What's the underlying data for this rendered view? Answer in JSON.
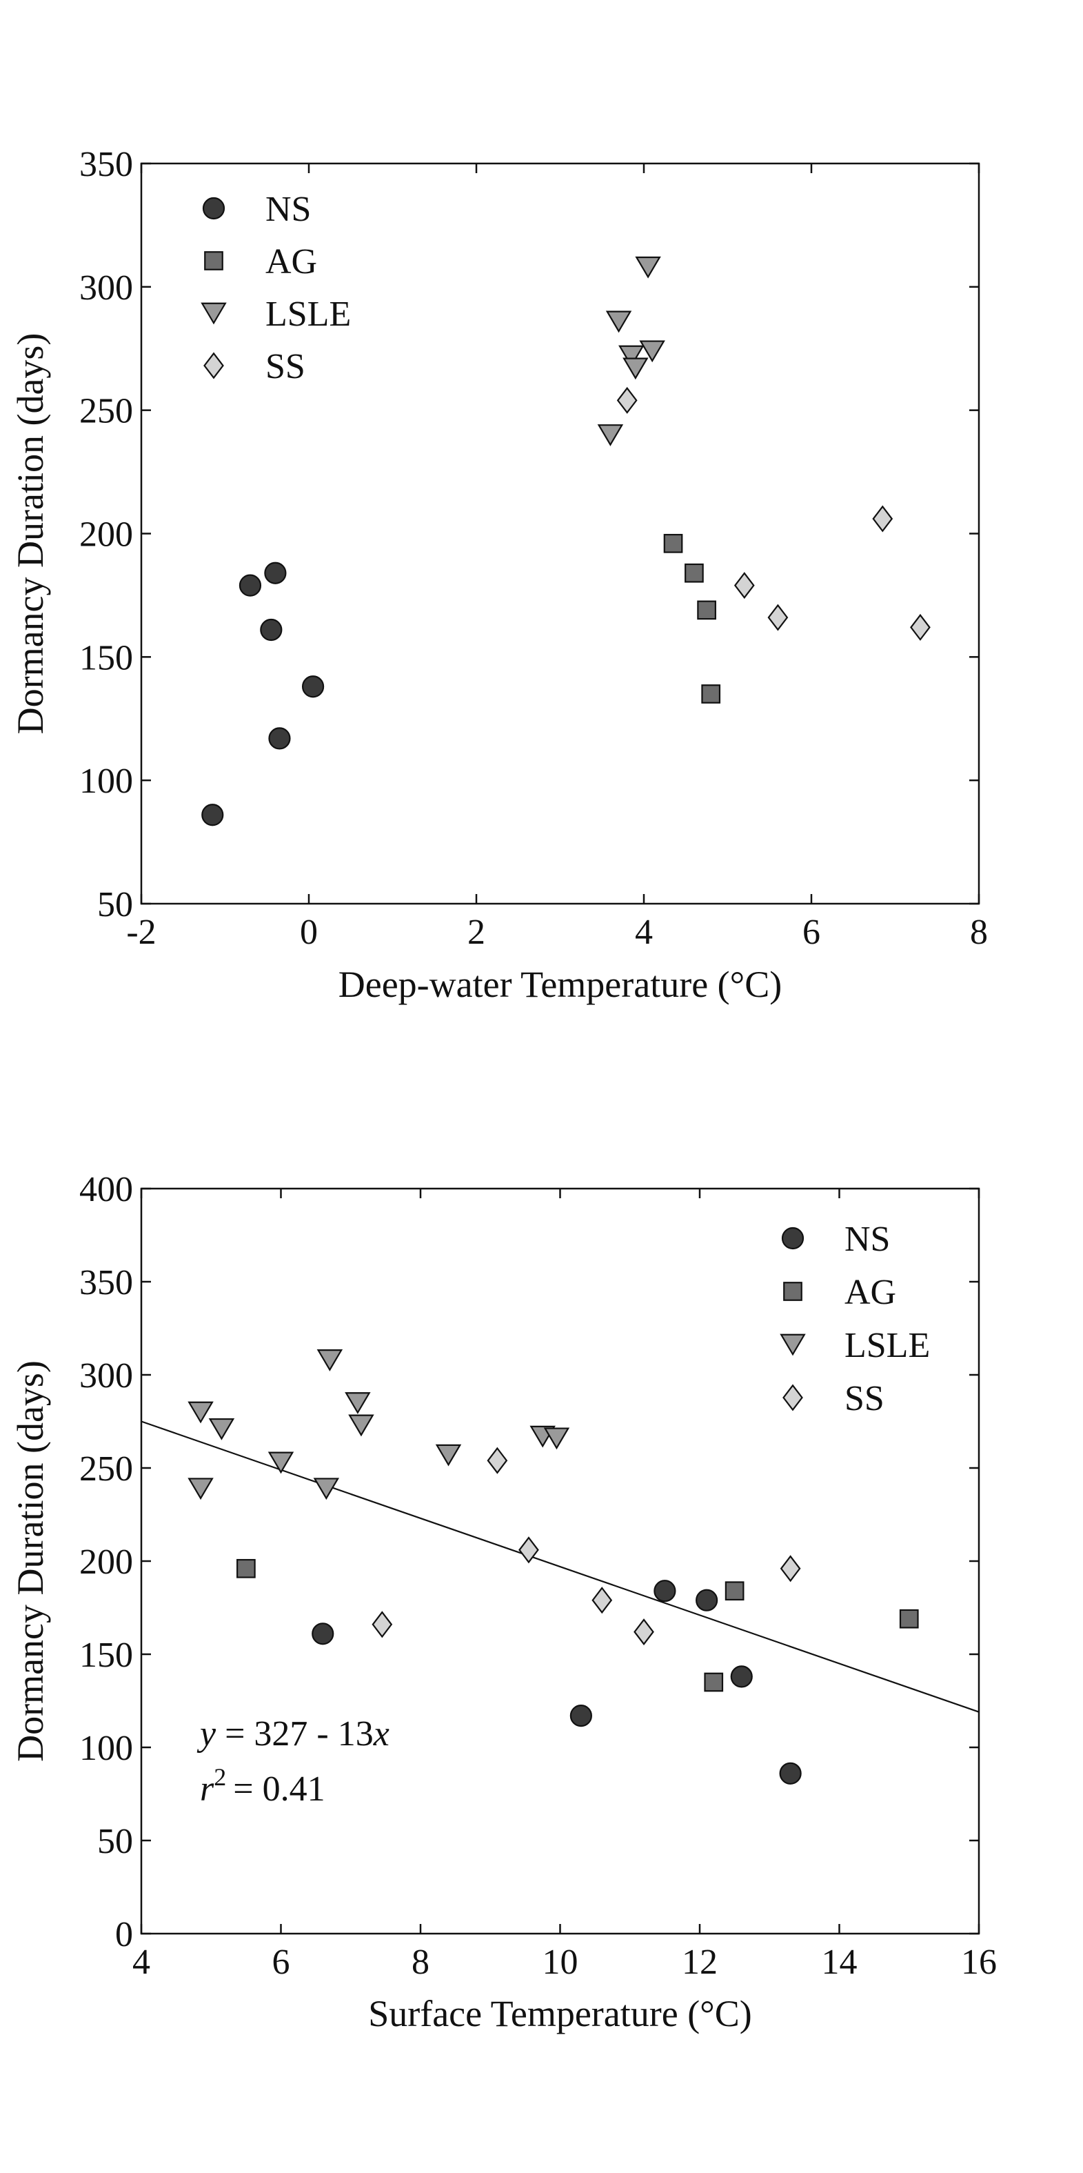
{
  "chart_data": [
    {
      "type": "scatter",
      "xlabel": "Deep-water Temperature (°C)",
      "ylabel": "Dormancy Duration (days)",
      "xlim": [
        -2,
        8
      ],
      "ylim": [
        50,
        350
      ],
      "xticks": [
        -2,
        0,
        2,
        4,
        6,
        8
      ],
      "yticks": [
        50,
        100,
        150,
        200,
        250,
        300,
        350
      ],
      "grid": false,
      "legend_position": "top-left",
      "series": [
        {
          "name": "NS",
          "marker": "circle",
          "color": "#3a3a3a",
          "points": [
            [
              -1.15,
              86
            ],
            [
              -0.7,
              179
            ],
            [
              -0.45,
              161
            ],
            [
              -0.4,
              184
            ],
            [
              -0.35,
              117
            ],
            [
              0.05,
              138
            ]
          ]
        },
        {
          "name": "AG",
          "marker": "square",
          "color": "#6d6d6d",
          "points": [
            [
              4.35,
              196
            ],
            [
              4.6,
              184
            ],
            [
              4.75,
              169
            ],
            [
              4.8,
              135
            ]
          ]
        },
        {
          "name": "LSLE",
          "marker": "triangle-down",
          "color": "#9a9a9a",
          "points": [
            [
              3.6,
              240
            ],
            [
              3.7,
              286
            ],
            [
              3.85,
              272
            ],
            [
              3.9,
              267
            ],
            [
              4.05,
              308
            ],
            [
              4.1,
              274
            ]
          ]
        },
        {
          "name": "SS",
          "marker": "diamond",
          "color": "#d4d4d4",
          "points": [
            [
              3.8,
              254
            ],
            [
              5.2,
              179
            ],
            [
              5.6,
              166
            ],
            [
              6.85,
              206
            ],
            [
              7.3,
              162
            ]
          ]
        }
      ]
    },
    {
      "type": "scatter",
      "xlabel": "Surface Temperature (°C)",
      "ylabel": "Dormancy Duration (days)",
      "xlim": [
        4,
        16
      ],
      "ylim": [
        0,
        400
      ],
      "xticks": [
        4,
        6,
        8,
        10,
        12,
        14,
        16
      ],
      "yticks": [
        0,
        50,
        100,
        150,
        200,
        250,
        300,
        350,
        400
      ],
      "grid": false,
      "legend_position": "top-right",
      "fit": {
        "intercept": 327,
        "slope": -13,
        "equation_prefix": "y = 327 - 13x",
        "r2_text": "= 0.41"
      },
      "series": [
        {
          "name": "NS",
          "marker": "circle",
          "color": "#3a3a3a",
          "points": [
            [
              6.6,
              161
            ],
            [
              10.3,
              117
            ],
            [
              11.5,
              184
            ],
            [
              12.1,
              179
            ],
            [
              12.6,
              138
            ],
            [
              13.3,
              86
            ]
          ]
        },
        {
          "name": "AG",
          "marker": "square",
          "color": "#6d6d6d",
          "points": [
            [
              5.5,
              196
            ],
            [
              12.2,
              135
            ],
            [
              12.5,
              184
            ],
            [
              15.0,
              169
            ]
          ]
        },
        {
          "name": "LSLE",
          "marker": "triangle-down",
          "color": "#9a9a9a",
          "points": [
            [
              4.85,
              280
            ],
            [
              4.85,
              239
            ],
            [
              5.15,
              271
            ],
            [
              6.0,
              253
            ],
            [
              6.65,
              239
            ],
            [
              6.7,
              308
            ],
            [
              7.1,
              285
            ],
            [
              7.15,
              273
            ],
            [
              8.4,
              257
            ],
            [
              9.75,
              267
            ],
            [
              9.95,
              266
            ]
          ]
        },
        {
          "name": "SS",
          "marker": "diamond",
          "color": "#d4d4d4",
          "points": [
            [
              7.45,
              166
            ],
            [
              9.1,
              254
            ],
            [
              9.55,
              206
            ],
            [
              10.6,
              179
            ],
            [
              11.2,
              162
            ],
            [
              13.3,
              196
            ]
          ]
        }
      ]
    }
  ]
}
